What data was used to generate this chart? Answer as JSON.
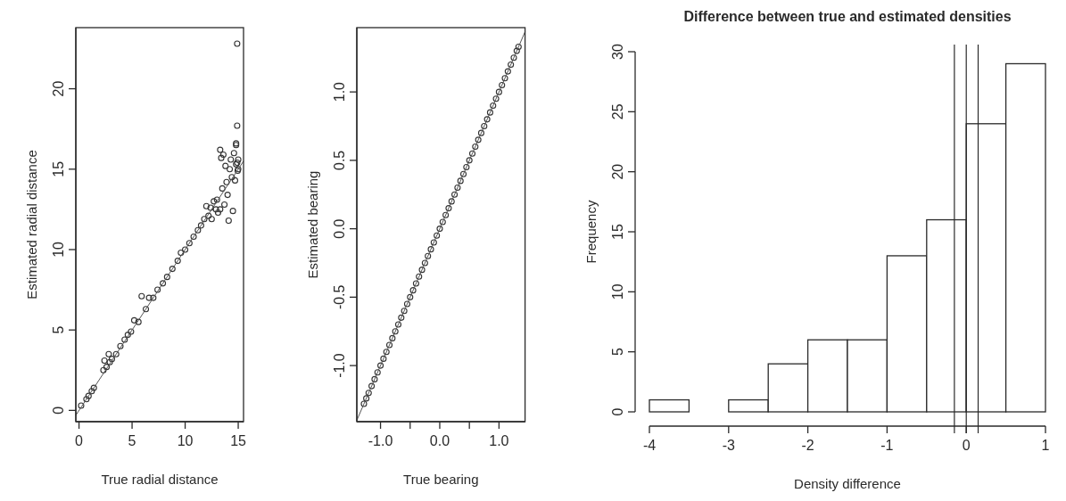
{
  "chart_data": [
    {
      "type": "scatter",
      "xlabel": "True radial distance",
      "ylabel": "Estimated radial distance",
      "xlim": [
        -0.3,
        15.5
      ],
      "ylim": [
        -0.7,
        23.8
      ],
      "xticks": [
        0,
        5,
        10,
        15
      ],
      "yticks": [
        0,
        5,
        10,
        15,
        20
      ],
      "series": [
        {
          "type": "scatter",
          "marker": "circle",
          "color": "#333333",
          "x": [
            0.2,
            0.7,
            0.9,
            1.2,
            1.4,
            2.3,
            2.4,
            2.6,
            2.8,
            2.9,
            3.1,
            3.5,
            3.9,
            4.3,
            4.6,
            4.9,
            5.2,
            5.6,
            5.9,
            6.3,
            6.6,
            7.0,
            7.4,
            7.9,
            8.3,
            8.8,
            9.3,
            9.6,
            10.0,
            10.4,
            10.8,
            11.2,
            11.5,
            11.8,
            12.0,
            12.2,
            12.4,
            12.5,
            12.7,
            12.9,
            13.0,
            13.1,
            13.3,
            13.3,
            13.4,
            13.5,
            13.6,
            13.7,
            13.8,
            13.9,
            14.0,
            14.1,
            14.2,
            14.3,
            14.4,
            14.5,
            14.6,
            14.7,
            14.8,
            14.8,
            14.9,
            14.9,
            15.0,
            15.0,
            14.9,
            14.8,
            14.95
          ],
          "values": [
            0.3,
            0.7,
            0.9,
            1.2,
            1.4,
            2.5,
            3.1,
            2.7,
            3.5,
            3.0,
            3.2,
            3.5,
            4.0,
            4.4,
            4.7,
            4.9,
            5.6,
            5.5,
            7.1,
            6.3,
            7.0,
            7.0,
            7.5,
            7.9,
            8.3,
            8.8,
            9.3,
            9.8,
            10.0,
            10.4,
            10.8,
            11.2,
            11.5,
            11.9,
            12.7,
            12.1,
            12.6,
            11.9,
            13.0,
            12.5,
            13.1,
            12.3,
            16.2,
            12.5,
            15.7,
            13.8,
            15.9,
            12.8,
            15.2,
            14.2,
            13.4,
            11.8,
            15.0,
            15.6,
            14.5,
            12.4,
            16.0,
            14.3,
            16.6,
            15.3,
            17.7,
            15.4,
            15.0,
            15.6,
            22.8,
            16.5,
            14.9
          ]
        },
        {
          "type": "line",
          "marker": "none",
          "color": "#555555",
          "x": [
            -0.3,
            15.5
          ],
          "values": [
            -0.3,
            15.5
          ]
        }
      ]
    },
    {
      "type": "scatter",
      "xlabel": "True bearing",
      "ylabel": "Estimated bearing",
      "xlim": [
        -1.4,
        1.44
      ],
      "ylim": [
        -1.41,
        1.47
      ],
      "xticks": [
        {
          "value": -1,
          "label": "-1.0"
        },
        {
          "value": -0.5,
          "label": null
        },
        {
          "value": 0,
          "label": "0.0"
        },
        {
          "value": 0.5,
          "label": null
        },
        {
          "value": 1,
          "label": "1.0"
        }
      ],
      "yticks": [
        {
          "value": -1,
          "label": "-1.0"
        },
        {
          "value": -0.5,
          "label": "-0.5"
        },
        {
          "value": 0,
          "label": "0.0"
        },
        {
          "value": 0.5,
          "label": "0.5"
        },
        {
          "value": 1,
          "label": "1.0"
        }
      ],
      "series": [
        {
          "type": "scatter",
          "marker": "circle",
          "color": "#333333",
          "x": [
            -1.28,
            -1.24,
            -1.2,
            -1.15,
            -1.1,
            -1.05,
            -1.0,
            -0.95,
            -0.9,
            -0.85,
            -0.8,
            -0.75,
            -0.7,
            -0.65,
            -0.6,
            -0.55,
            -0.5,
            -0.45,
            -0.4,
            -0.35,
            -0.3,
            -0.25,
            -0.2,
            -0.15,
            -0.1,
            -0.05,
            0.0,
            0.05,
            0.1,
            0.15,
            0.2,
            0.25,
            0.3,
            0.35,
            0.4,
            0.45,
            0.5,
            0.55,
            0.6,
            0.65,
            0.7,
            0.75,
            0.8,
            0.85,
            0.9,
            0.95,
            1.0,
            1.05,
            1.1,
            1.15,
            1.2,
            1.25,
            1.3,
            1.33
          ],
          "values": [
            -1.28,
            -1.24,
            -1.2,
            -1.15,
            -1.1,
            -1.05,
            -1.0,
            -0.95,
            -0.9,
            -0.85,
            -0.8,
            -0.75,
            -0.7,
            -0.65,
            -0.6,
            -0.55,
            -0.5,
            -0.45,
            -0.4,
            -0.35,
            -0.3,
            -0.25,
            -0.2,
            -0.15,
            -0.1,
            -0.05,
            0.0,
            0.05,
            0.1,
            0.15,
            0.2,
            0.25,
            0.3,
            0.35,
            0.4,
            0.45,
            0.5,
            0.55,
            0.6,
            0.65,
            0.7,
            0.75,
            0.8,
            0.85,
            0.9,
            0.95,
            1.0,
            1.05,
            1.1,
            1.15,
            1.2,
            1.25,
            1.3,
            1.33
          ]
        },
        {
          "type": "line",
          "marker": "none",
          "color": "#555555",
          "x": [
            -1.4,
            1.44
          ],
          "values": [
            -1.4,
            1.44
          ]
        }
      ]
    },
    {
      "type": "histogram",
      "title": "Difference between true and estimated densities",
      "xlabel": "Density difference",
      "ylabel": "Frequency",
      "xlim": [
        -4,
        1
      ],
      "ylim": [
        0,
        30
      ],
      "xticks": [
        -4,
        -3,
        -2,
        -1,
        0,
        1
      ],
      "yticks": [
        0,
        5,
        10,
        15,
        20,
        25,
        30
      ],
      "color": "#ffffff",
      "bins": [
        -4,
        -3.5,
        -3,
        -2.5,
        -2,
        -1.5,
        -1,
        -0.5,
        0,
        0.5,
        1
      ],
      "values": [
        1,
        0,
        1,
        4,
        6,
        6,
        13,
        16,
        24,
        29
      ],
      "ref_lines": [
        {
          "axis": "x",
          "value": -0.15
        },
        {
          "axis": "x",
          "value": 0
        },
        {
          "axis": "x",
          "value": 0.15
        }
      ]
    }
  ]
}
